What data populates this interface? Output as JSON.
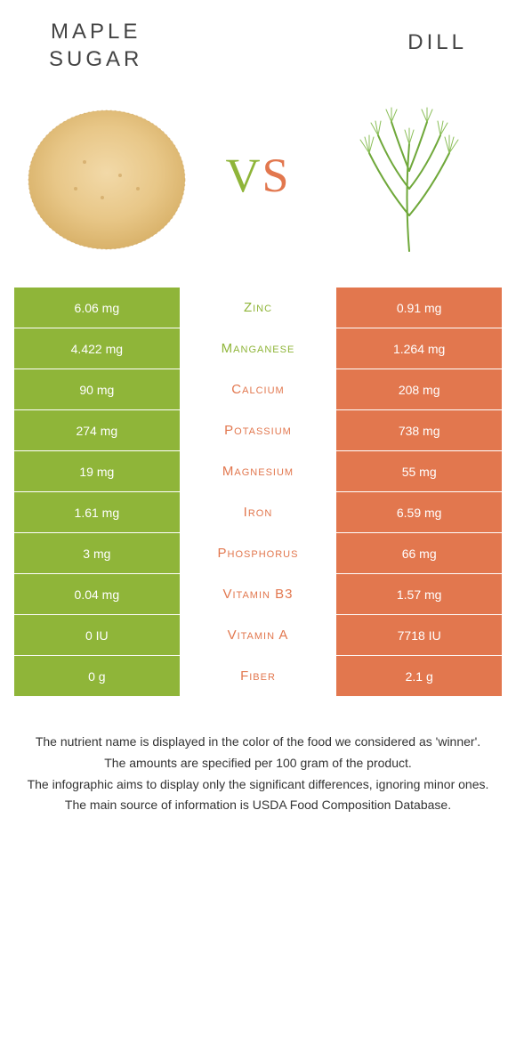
{
  "colors": {
    "green": "#8fb539",
    "orange": "#e2774e",
    "white": "#ffffff",
    "text": "#333333"
  },
  "header": {
    "left_title": "MAPLE\nSUGAR",
    "right_title": "DILL",
    "vs_text": "VS",
    "vs_color_left": "#8fb539",
    "vs_color_right": "#e2774e"
  },
  "images": {
    "left_alt": "maple-sugar-image",
    "right_alt": "dill-image"
  },
  "rows": [
    {
      "left": "6.06 mg",
      "name": "Zinc",
      "right": "0.91 mg",
      "winner": "left"
    },
    {
      "left": "4.422 mg",
      "name": "Manganese",
      "right": "1.264 mg",
      "winner": "left"
    },
    {
      "left": "90 mg",
      "name": "Calcium",
      "right": "208 mg",
      "winner": "right"
    },
    {
      "left": "274 mg",
      "name": "Potassium",
      "right": "738 mg",
      "winner": "right"
    },
    {
      "left": "19 mg",
      "name": "Magnesium",
      "right": "55 mg",
      "winner": "right"
    },
    {
      "left": "1.61 mg",
      "name": "Iron",
      "right": "6.59 mg",
      "winner": "right"
    },
    {
      "left": "3 mg",
      "name": "Phosphorus",
      "right": "66 mg",
      "winner": "right"
    },
    {
      "left": "0.04 mg",
      "name": "Vitamin B3",
      "right": "1.57 mg",
      "winner": "right"
    },
    {
      "left": "0 IU",
      "name": "Vitamin A",
      "right": "7718 IU",
      "winner": "right"
    },
    {
      "left": "0 g",
      "name": "Fiber",
      "right": "2.1 g",
      "winner": "right"
    }
  ],
  "footer": {
    "line1": "The nutrient name is displayed in the color of the food we considered as 'winner'.",
    "line2": "The amounts are specified per 100 gram of the product.",
    "line3": "The infographic aims to display only the significant differences, ignoring minor ones.",
    "line4": "The main source of information is USDA Food Composition Database."
  }
}
